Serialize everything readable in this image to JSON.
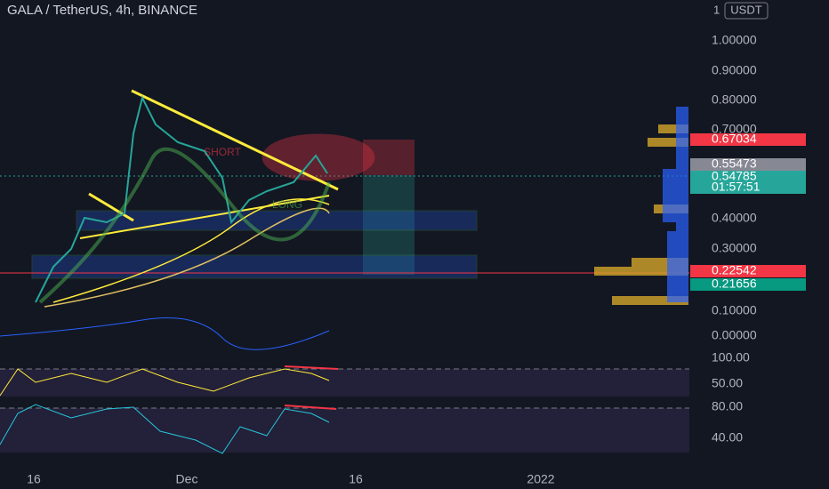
{
  "header": {
    "title": "GALA / TetherUS, 4h, BINANCE"
  },
  "price_axis": {
    "currency": "USDT",
    "top": "1",
    "labels": [
      "1.00000",
      "0.90000",
      "0.80000",
      "0.70000",
      "0.40000",
      "0.30000",
      "0.10000",
      "0.00000"
    ]
  },
  "badges": [
    {
      "label": "0.67034",
      "color": "#f23645"
    },
    {
      "label": "0.55473",
      "color": "#868993"
    },
    {
      "label": "0.54785",
      "color": "#26a69a"
    },
    {
      "label": "01:57:51",
      "color": "#26a69a"
    },
    {
      "label": "0.22542",
      "color": "#f23645"
    },
    {
      "label": "0.21656",
      "color": "#089981"
    }
  ],
  "indicator_axes": [
    "100.00",
    "50.00",
    "80.00",
    "40.00"
  ],
  "annotations": [
    "SHORT",
    "LONG"
  ],
  "time_axis": {
    "labels": [
      "16",
      "Dec",
      "16",
      "2022"
    ]
  }
}
